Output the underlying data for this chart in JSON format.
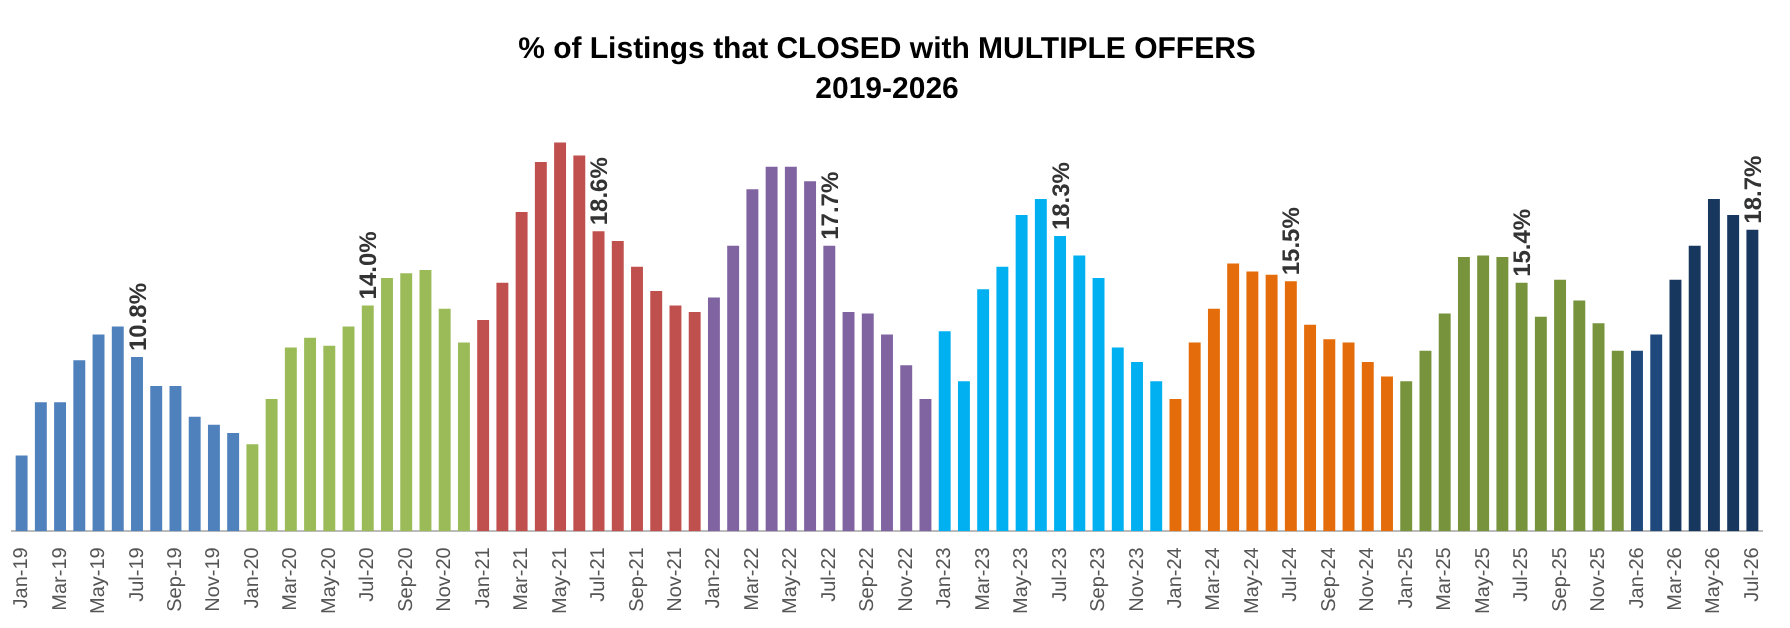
{
  "chart_data": {
    "type": "bar",
    "title": "% of Listings that CLOSED with MULTIPLE OFFERS",
    "subtitle": "2019-2026",
    "categories": [
      "Jan-19",
      null,
      "Mar-19",
      null,
      "May-19",
      null,
      "Jul-19",
      null,
      "Sep-19",
      null,
      "Nov-19",
      null,
      "Jan-20",
      null,
      "Mar-20",
      null,
      "May-20",
      null,
      "Jul-20",
      null,
      "Sep-20",
      null,
      "Nov-20",
      null,
      "Jan-21",
      null,
      "Mar-21",
      null,
      "May-21",
      null,
      "Jul-21",
      null,
      "Sep-21",
      null,
      "Nov-21",
      null,
      "Jan-22",
      null,
      "Mar-22",
      null,
      "May-22",
      null,
      "Jul-22",
      null,
      "Sep-22",
      null,
      "Nov-22",
      null,
      "Jan-23",
      null,
      "Mar-23",
      null,
      "May-23",
      null,
      "Jul-23",
      null,
      "Sep-23",
      null,
      "Nov-23",
      null,
      "Jan-24",
      null,
      "Mar-24",
      null,
      "May-24",
      null,
      "Jul-24",
      null,
      "Sep-24",
      null,
      "Nov-24",
      null,
      "Jan-25",
      null,
      "Mar-25",
      null,
      "May-25",
      null,
      "Jul-25",
      null,
      "Sep-25",
      null,
      "Nov-25",
      null,
      "Jan-26",
      null,
      "Mar-26",
      null,
      "May-26",
      null,
      "Jul-26"
    ],
    "values": [
      4.7,
      8.0,
      8.0,
      10.6,
      12.2,
      12.7,
      10.8,
      9.0,
      9.0,
      7.1,
      6.6,
      6.1,
      5.4,
      8.2,
      11.4,
      12.0,
      11.5,
      12.7,
      14.0,
      15.7,
      16.0,
      16.2,
      13.8,
      11.7,
      13.1,
      15.4,
      19.8,
      22.9,
      24.1,
      23.3,
      18.6,
      18.0,
      16.4,
      14.9,
      14.0,
      13.6,
      14.5,
      17.7,
      21.2,
      22.6,
      22.6,
      21.7,
      17.7,
      13.6,
      13.5,
      12.2,
      10.3,
      8.2,
      12.4,
      9.3,
      15.0,
      16.4,
      19.6,
      20.6,
      18.3,
      17.1,
      15.7,
      11.4,
      10.5,
      9.3,
      8.2,
      11.7,
      13.8,
      16.6,
      16.1,
      15.9,
      15.5,
      12.8,
      11.9,
      11.7,
      10.5,
      9.6,
      9.3,
      11.2,
      13.5,
      17.0,
      17.1,
      17.0,
      15.4,
      13.3,
      15.6,
      14.3,
      12.9,
      11.2,
      11.2,
      12.2,
      15.6,
      17.7,
      20.6,
      19.6,
      18.7
    ],
    "colors": [
      "#4f81bd",
      "#4f81bd",
      "#4f81bd",
      "#4f81bd",
      "#4f81bd",
      "#4f81bd",
      "#4f81bd",
      "#4f81bd",
      "#4f81bd",
      "#4f81bd",
      "#4f81bd",
      "#4f81bd",
      "#9bbb59",
      "#9bbb59",
      "#9bbb59",
      "#9bbb59",
      "#9bbb59",
      "#9bbb59",
      "#9bbb59",
      "#9bbb59",
      "#9bbb59",
      "#9bbb59",
      "#9bbb59",
      "#9bbb59",
      "#c0504d",
      "#c0504d",
      "#c0504d",
      "#c0504d",
      "#c0504d",
      "#c0504d",
      "#c0504d",
      "#c0504d",
      "#c0504d",
      "#c0504d",
      "#c0504d",
      "#c0504d",
      "#8064a2",
      "#8064a2",
      "#8064a2",
      "#8064a2",
      "#8064a2",
      "#8064a2",
      "#8064a2",
      "#8064a2",
      "#8064a2",
      "#8064a2",
      "#8064a2",
      "#8064a2",
      "#00b0f0",
      "#00b0f0",
      "#00b0f0",
      "#00b0f0",
      "#00b0f0",
      "#00b0f0",
      "#00b0f0",
      "#00b0f0",
      "#00b0f0",
      "#00b0f0",
      "#00b0f0",
      "#00b0f0",
      "#e46c0a",
      "#e46c0a",
      "#e46c0a",
      "#e46c0a",
      "#e46c0a",
      "#e46c0a",
      "#e46c0a",
      "#e46c0a",
      "#e46c0a",
      "#e46c0a",
      "#e46c0a",
      "#e46c0a",
      "#77933c",
      "#77933c",
      "#77933c",
      "#77933c",
      "#77933c",
      "#77933c",
      "#77933c",
      "#77933c",
      "#77933c",
      "#77933c",
      "#77933c",
      "#77933c",
      "#1f497d",
      "#1f497d",
      "#17375e",
      "#17375e",
      "#17375e",
      "#17375e",
      "#17375e"
    ],
    "value_labels": [
      null,
      null,
      null,
      null,
      null,
      null,
      "10.8%",
      null,
      null,
      null,
      null,
      null,
      null,
      null,
      null,
      null,
      null,
      null,
      "14.0%",
      null,
      null,
      null,
      null,
      null,
      null,
      null,
      null,
      null,
      null,
      null,
      "18.6%",
      null,
      null,
      null,
      null,
      null,
      null,
      null,
      null,
      null,
      null,
      null,
      "17.7%",
      null,
      null,
      null,
      null,
      null,
      null,
      null,
      null,
      null,
      null,
      null,
      "18.3%",
      null,
      null,
      null,
      null,
      null,
      null,
      null,
      null,
      null,
      null,
      null,
      "15.5%",
      null,
      null,
      null,
      null,
      null,
      null,
      null,
      null,
      null,
      null,
      null,
      "15.4%",
      null,
      null,
      null,
      null,
      null,
      null,
      null,
      null,
      null,
      null,
      null,
      "18.7%"
    ],
    "legend": false,
    "grid": false
  }
}
